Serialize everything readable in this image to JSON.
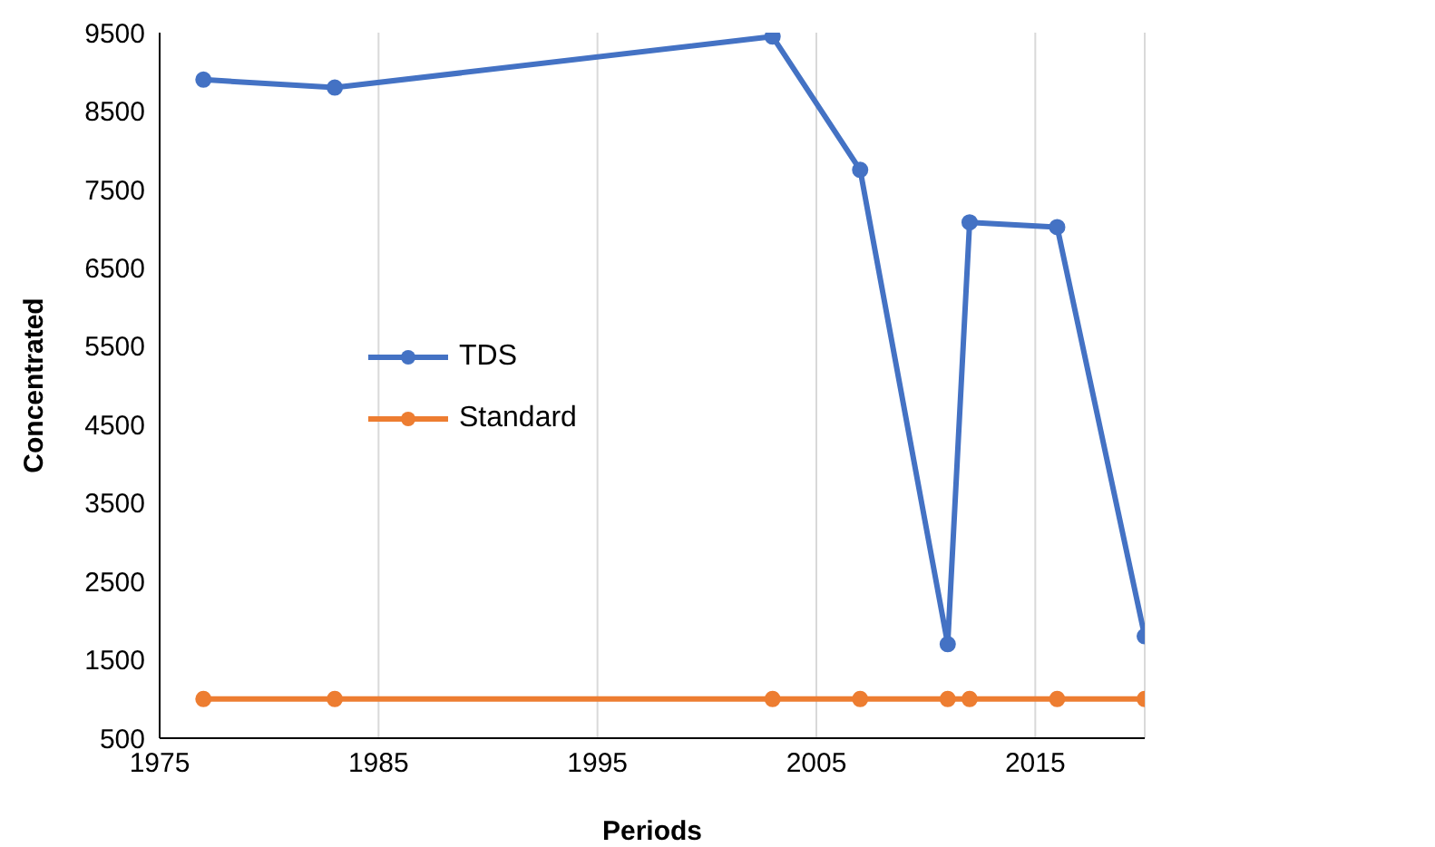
{
  "chart_data": {
    "type": "line",
    "xlabel": "Periods",
    "ylabel": "Concentrated",
    "x": [
      1977,
      1983,
      2003,
      2007,
      2011,
      2012,
      2016,
      2020
    ],
    "series": [
      {
        "name": "TDS",
        "color": "#4472c4",
        "values": [
          8900,
          8800,
          9450,
          7750,
          1700,
          7080,
          7020,
          1800
        ]
      },
      {
        "name": "Standard",
        "color": "#ed7d31",
        "values": [
          1000,
          1000,
          1000,
          1000,
          1000,
          1000,
          1000,
          1000
        ]
      }
    ],
    "xlim": [
      1975,
      2020
    ],
    "xticks": [
      1975,
      1985,
      1995,
      2005,
      2015
    ],
    "ylim": [
      500,
      9500
    ],
    "yticks": [
      500,
      1500,
      2500,
      3500,
      4500,
      5500,
      6500,
      7500,
      8500,
      9500
    ],
    "grid": "x",
    "legend": "left",
    "marker": "circle",
    "line_style": "solid"
  }
}
